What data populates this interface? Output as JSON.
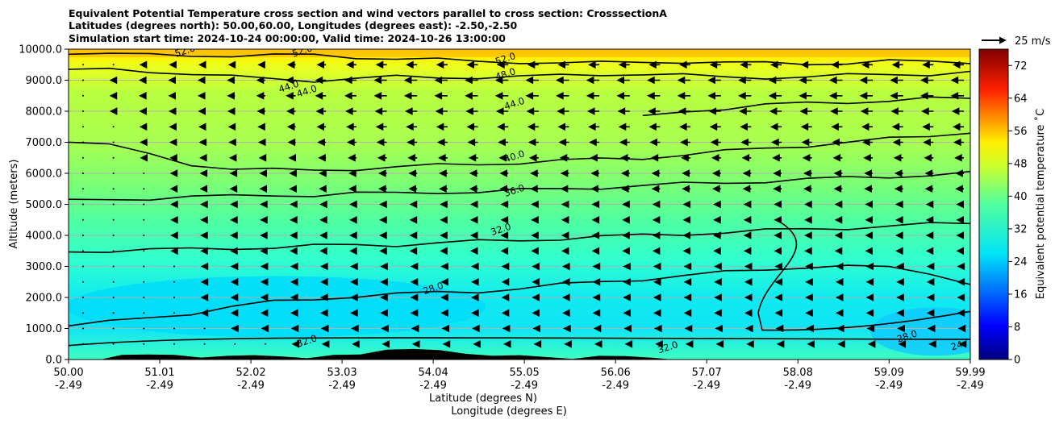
{
  "chart_data": {
    "type": "cross-section-contour",
    "title_lines": [
      "Equivalent Potential Temperature cross section and wind vectors parallel to cross section: CrosssectionA",
      "Latitudes (degrees north): 50.00,60.00, Longitudes (degrees east): -2.50,-2.50",
      "Simulation start time: 2024-10-24 00:00:00, Valid time: 2024-10-26 13:00:00"
    ],
    "ylabel": "Altitude (meters)",
    "xlabel_lines": [
      "Latitude (degrees N)",
      "Longitude (degrees E)"
    ],
    "ylim": [
      0,
      10000
    ],
    "y_ticks": [
      0,
      1000,
      2000,
      3000,
      4000,
      5000,
      6000,
      7000,
      8000,
      9000,
      10000
    ],
    "y_tick_labels": [
      "0.0",
      "1000.0",
      "2000.0",
      "3000.0",
      "4000.0",
      "5000.0",
      "6000.0",
      "7000.0",
      "8000.0",
      "9000.0",
      "10000.0"
    ],
    "xlim": [
      50.0,
      59.99
    ],
    "x_ticks": [
      {
        "lat": "50.00",
        "lon": "-2.49"
      },
      {
        "lat": "51.01",
        "lon": "-2.49"
      },
      {
        "lat": "52.02",
        "lon": "-2.49"
      },
      {
        "lat": "53.03",
        "lon": "-2.49"
      },
      {
        "lat": "54.04",
        "lon": "-2.49"
      },
      {
        "lat": "55.05",
        "lon": "-2.49"
      },
      {
        "lat": "56.06",
        "lon": "-2.49"
      },
      {
        "lat": "57.07",
        "lon": "-2.49"
      },
      {
        "lat": "58.08",
        "lon": "-2.49"
      },
      {
        "lat": "59.09",
        "lon": "-2.49"
      },
      {
        "lat": "59.99",
        "lon": "-2.49"
      }
    ],
    "colorbar": {
      "label": "Equivalent potential temperature ˚C",
      "range": [
        0,
        76
      ],
      "ticks": [
        0,
        8,
        16,
        24,
        32,
        40,
        48,
        56,
        64,
        72
      ],
      "colormap": "jet"
    },
    "quiver_key": "25 m/s",
    "contours": [
      {
        "level": 24,
        "label": "24",
        "heights": [
          null,
          null,
          null,
          null,
          null,
          null,
          null,
          null,
          null,
          null,
          null,
          null,
          null,
          null,
          null,
          null,
          null,
          null,
          null,
          null,
          null,
          null,
          null
        ]
      },
      {
        "level": 28,
        "label": "28.0",
        "heights": [
          1100,
          1200,
          1350,
          1500,
          1700,
          1850,
          1950,
          2050,
          2100,
          2150,
          2200,
          2300,
          2400,
          2500,
          2600,
          2700,
          2800,
          2900,
          3000,
          3000,
          2950,
          2800,
          2450
        ]
      },
      {
        "level": 32,
        "label": "32.0",
        "heights": [
          3500,
          3500,
          3520,
          3560,
          3600,
          3600,
          3650,
          3700,
          3700,
          3750,
          3800,
          3850,
          3900,
          3950,
          4000,
          4050,
          4100,
          4150,
          4200,
          4250,
          4300,
          4350,
          4400
        ]
      },
      {
        "level": 36,
        "label": "36.0",
        "heights": [
          5100,
          5150,
          5200,
          5250,
          5250,
          5300,
          5300,
          5350,
          5350,
          5400,
          5400,
          5450,
          5500,
          5550,
          5600,
          5650,
          5700,
          5750,
          5800,
          5850,
          5900,
          5950,
          6000
        ]
      },
      {
        "level": 40,
        "label": "40.0",
        "heights": [
          7050,
          6900,
          6600,
          6300,
          6150,
          6100,
          6100,
          6150,
          6200,
          6250,
          6300,
          6350,
          6400,
          6450,
          6500,
          6600,
          6700,
          6800,
          6900,
          7000,
          7100,
          7200,
          7350
        ]
      },
      {
        "level": 44,
        "label": "44.0",
        "heights": [
          null,
          null,
          null,
          null,
          null,
          null,
          null,
          null,
          null,
          null,
          null,
          null,
          null,
          null,
          7800,
          8000,
          8100,
          8200,
          8250,
          8300,
          8350,
          8400,
          8400
        ]
      },
      {
        "level": 48,
        "label": "48.0",
        "heights": [
          9300,
          9350,
          9300,
          9200,
          9100,
          9050,
          9000,
          9050,
          9100,
          9100,
          9100,
          9100,
          9150,
          9200,
          9200,
          9150,
          9100,
          9100,
          9100,
          9150,
          9200,
          9200,
          9250
        ]
      },
      {
        "level": 52,
        "label": "52.0",
        "heights": [
          9900,
          9850,
          9800,
          9800,
          9800,
          9800,
          9800,
          9750,
          9700,
          9650,
          9600,
          9600,
          9550,
          9550,
          9600,
          9600,
          9550,
          9550,
          9550,
          9550,
          9600,
          9600,
          9600
        ]
      }
    ],
    "contour_x": [
      50.0,
      50.45,
      50.9,
      51.36,
      51.81,
      52.27,
      52.72,
      53.18,
      53.63,
      54.09,
      54.54,
      55.0,
      55.45,
      55.9,
      56.36,
      56.81,
      57.27,
      57.72,
      58.18,
      58.63,
      59.09,
      59.54,
      59.99
    ],
    "contour_label_positions": [
      {
        "label": "52.0",
        "lat": 51.3,
        "alt": 9850
      },
      {
        "label": "52.0",
        "lat": 52.6,
        "alt": 9850
      },
      {
        "label": "44.0",
        "lat": 52.45,
        "alt": 8700
      },
      {
        "label": "44.0",
        "lat": 52.65,
        "alt": 8550
      },
      {
        "label": "52.0",
        "lat": 54.85,
        "alt": 9600
      },
      {
        "label": "48.0",
        "lat": 54.85,
        "alt": 9100
      },
      {
        "label": "44.0",
        "lat": 54.95,
        "alt": 8150
      },
      {
        "label": "40.0",
        "lat": 54.95,
        "alt": 6450
      },
      {
        "label": "36.0",
        "lat": 54.95,
        "alt": 5350
      },
      {
        "label": "32.0",
        "lat": 54.8,
        "alt": 4100
      },
      {
        "label": "28.0",
        "lat": 54.05,
        "alt": 2200
      },
      {
        "label": "32.0",
        "lat": 52.65,
        "alt": 500
      },
      {
        "label": "32.0",
        "lat": 56.65,
        "alt": 300
      },
      {
        "label": "28.0",
        "lat": 59.3,
        "alt": 650
      },
      {
        "label": "24",
        "lat": 59.85,
        "alt": 350
      }
    ],
    "terrain_alt": [
      0,
      0,
      150,
      200,
      150,
      100,
      120,
      180,
      100,
      80,
      150,
      200,
      320,
      380,
      300,
      220,
      120,
      180,
      80,
      60,
      120,
      150,
      60,
      20,
      0,
      0,
      0,
      0,
      0,
      0,
      0,
      0,
      0,
      0,
      0
    ],
    "wind_vectors": {
      "x_count": 30,
      "levels_m": [
        9500,
        9000,
        8500,
        8000,
        7500,
        7000,
        6500,
        6000,
        5500,
        5000,
        4500,
        4000,
        3500,
        3000,
        2500,
        2000,
        1500,
        1000,
        500
      ],
      "u_ms_profile": [
        -11,
        -13,
        -13,
        -12,
        -11,
        -10,
        -9,
        -8,
        -8,
        -7,
        -7,
        -7,
        -7,
        -6,
        -6,
        -6,
        -6,
        -5,
        -4
      ],
      "note": "wind parallel to cross section, southward (negative); weaker near 50N, strongest north of 54N"
    }
  }
}
